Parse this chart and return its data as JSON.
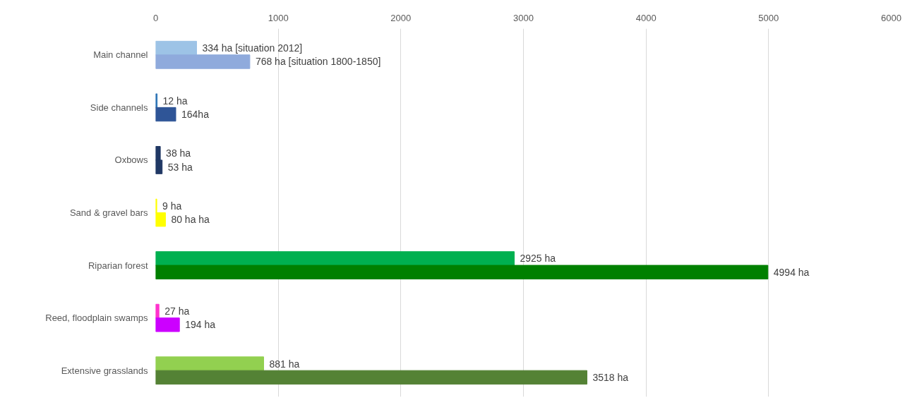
{
  "chart_data": {
    "type": "bar",
    "orientation": "horizontal",
    "categories": [
      "Main channel",
      "Side channels",
      "Oxbows",
      "Sand & gravel bars",
      "Riparian forest",
      "Reed, floodplain swamps",
      "Extensive grasslands"
    ],
    "series": [
      {
        "colors": [
          "#9dc3e6",
          "#2e75b6",
          "#203864",
          "#ffff00",
          "#00b050",
          "#ff33cc",
          "#92d050"
        ],
        "values": [
          334,
          12,
          38,
          9,
          2925,
          27,
          881
        ],
        "value_labels": [
          "334 ha [situation 2012]",
          "12 ha",
          "38 ha",
          "9 ha",
          "2925 ha",
          "27 ha",
          "881 ha"
        ]
      },
      {
        "colors": [
          "#8faadc",
          "#2f5597",
          "#203864",
          "#ffff00",
          "#008000",
          "#cc00ff",
          "#548235"
        ],
        "values": [
          768,
          164,
          53,
          80,
          4994,
          194,
          3518
        ],
        "value_labels": [
          "768 ha [situation 1800-1850]",
          "164ha",
          "53 ha",
          "80 ha ha",
          "4994 ha",
          "194 ha",
          "3518 ha"
        ]
      }
    ],
    "xlim": [
      0,
      6000
    ],
    "xticks": [
      0,
      1000,
      2000,
      3000,
      4000,
      5000,
      6000
    ],
    "grid": "x"
  }
}
